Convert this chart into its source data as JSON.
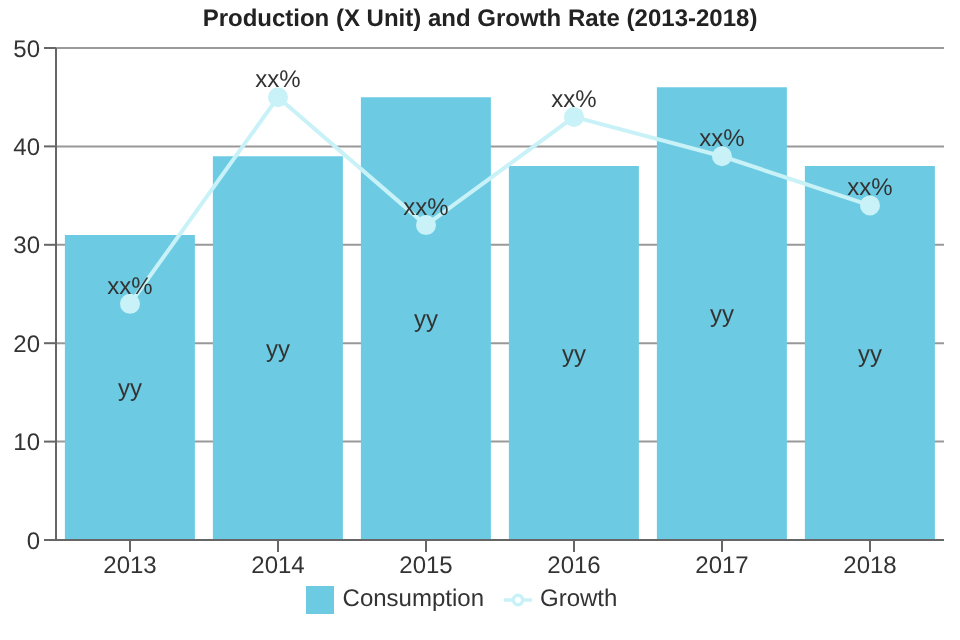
{
  "chart_data": {
    "type": "bar",
    "title": "Production (X Unit) and Growth Rate (2013-2018)",
    "categories": [
      "2013",
      "2014",
      "2015",
      "2016",
      "2017",
      "2018"
    ],
    "series": [
      {
        "name": "Consumption",
        "color": "#6ccbe3",
        "values": [
          31,
          39,
          45,
          38,
          46,
          38
        ],
        "value_labels": [
          "yy",
          "yy",
          "yy",
          "yy",
          "yy",
          "yy"
        ]
      },
      {
        "name": "Growth",
        "type": "line",
        "color": "#c8f2f7",
        "values": [
          24,
          45,
          32,
          43,
          39,
          34
        ],
        "value_labels": [
          "xx%",
          "xx%",
          "xx%",
          "xx%",
          "xx%",
          "xx%"
        ],
        "marker": "circle"
      }
    ],
    "ylim": [
      0,
      50
    ],
    "yticks": [
      0,
      10,
      20,
      30,
      40,
      50
    ],
    "grid": "y",
    "legend": "bottom"
  }
}
